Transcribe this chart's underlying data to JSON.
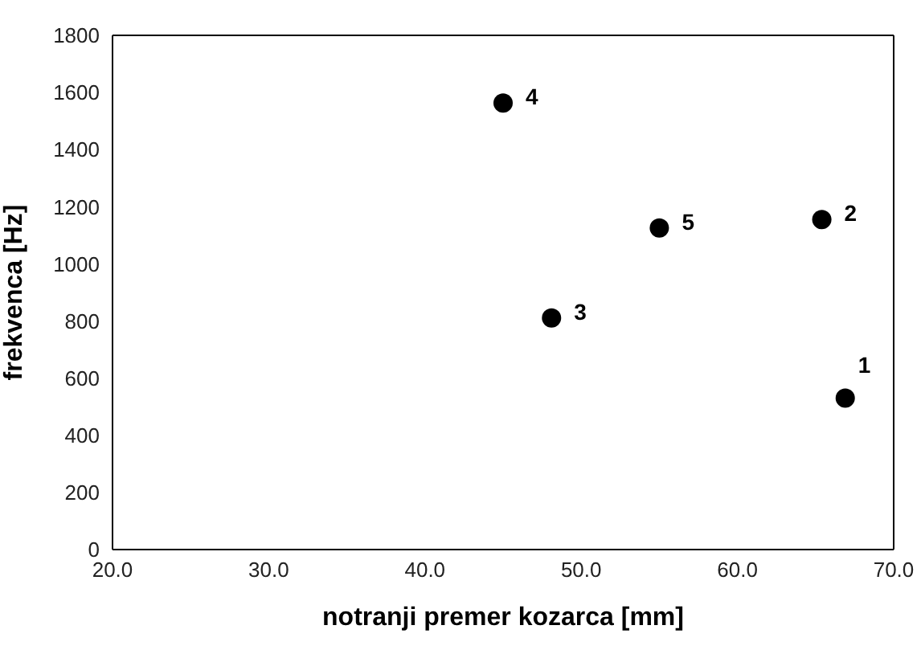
{
  "chart_data": {
    "type": "scatter",
    "xlabel": "notranji premer kozarca [mm]",
    "ylabel": "frekvenca [Hz]",
    "x": [
      66.9,
      65.4,
      48.1,
      45.0,
      55.0
    ],
    "values": [
      530,
      1155,
      811,
      1563,
      1126
    ],
    "color": "#000000",
    "marker": "circle",
    "grid": false,
    "legend": false,
    "xlim": [
      20,
      70
    ],
    "xticks": [
      {
        "value": 20,
        "label": "20.0"
      },
      {
        "value": 30,
        "label": "30.0"
      },
      {
        "value": 40,
        "label": "40.0"
      },
      {
        "value": 50,
        "label": "50.0"
      },
      {
        "value": 60,
        "label": "60.0"
      },
      {
        "value": 70,
        "label": "70.0"
      }
    ],
    "ylim": [
      0,
      1800
    ],
    "yticks": [
      0,
      200,
      400,
      600,
      800,
      1000,
      1200,
      1400,
      1600,
      1800
    ],
    "annotations": [
      {
        "text": "1",
        "x": 66.9,
        "y": 530
      },
      {
        "text": "2",
        "x": 65.4,
        "y": 1155
      },
      {
        "text": "3",
        "x": 48.1,
        "y": 811
      },
      {
        "text": "4",
        "x": 45.0,
        "y": 1563
      },
      {
        "text": "5",
        "x": 55.0,
        "y": 1126
      }
    ]
  }
}
